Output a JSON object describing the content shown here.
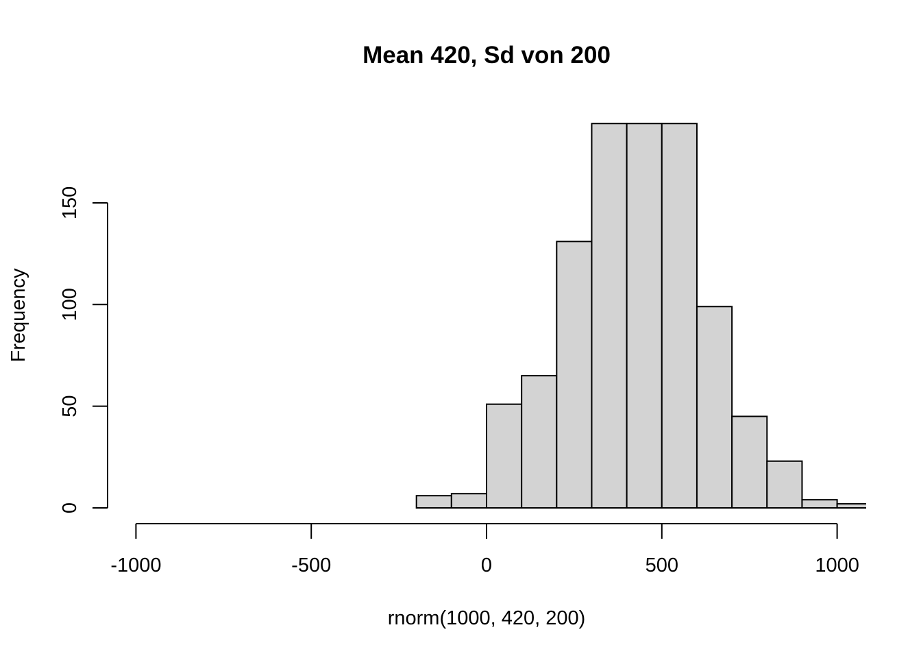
{
  "chart_data": {
    "type": "bar",
    "subtype": "histogram",
    "title": "Mean 420, Sd von 200",
    "xlabel": "rnorm(1000, 420, 200)",
    "ylabel": "Frequency",
    "x_ticks": [
      "-1000",
      "-500",
      "0",
      "500",
      "1000"
    ],
    "x_tick_values": [
      -1000,
      -500,
      0,
      500,
      1000
    ],
    "y_ticks": [
      "0",
      "50",
      "100",
      "150"
    ],
    "y_tick_values": [
      0,
      50,
      100,
      150
    ],
    "xlim": [
      -1000,
      1080
    ],
    "ylim": [
      0,
      189
    ],
    "bins": [
      {
        "start": -200,
        "end": -100,
        "count": 6
      },
      {
        "start": -100,
        "end": 0,
        "count": 7
      },
      {
        "start": 0,
        "end": 100,
        "count": 51
      },
      {
        "start": 100,
        "end": 200,
        "count": 65
      },
      {
        "start": 200,
        "end": 300,
        "count": 131
      },
      {
        "start": 300,
        "end": 400,
        "count": 189
      },
      {
        "start": 400,
        "end": 500,
        "count": 189
      },
      {
        "start": 500,
        "end": 600,
        "count": 189
      },
      {
        "start": 600,
        "end": 700,
        "count": 99
      },
      {
        "start": 700,
        "end": 800,
        "count": 45
      },
      {
        "start": 800,
        "end": 900,
        "count": 23
      },
      {
        "start": 900,
        "end": 1000,
        "count": 4
      },
      {
        "start": 1000,
        "end": 1100,
        "count": 2
      }
    ],
    "bar_fill": "#d3d3d3",
    "bar_stroke": "#000000",
    "grid": false,
    "legend": "none"
  }
}
